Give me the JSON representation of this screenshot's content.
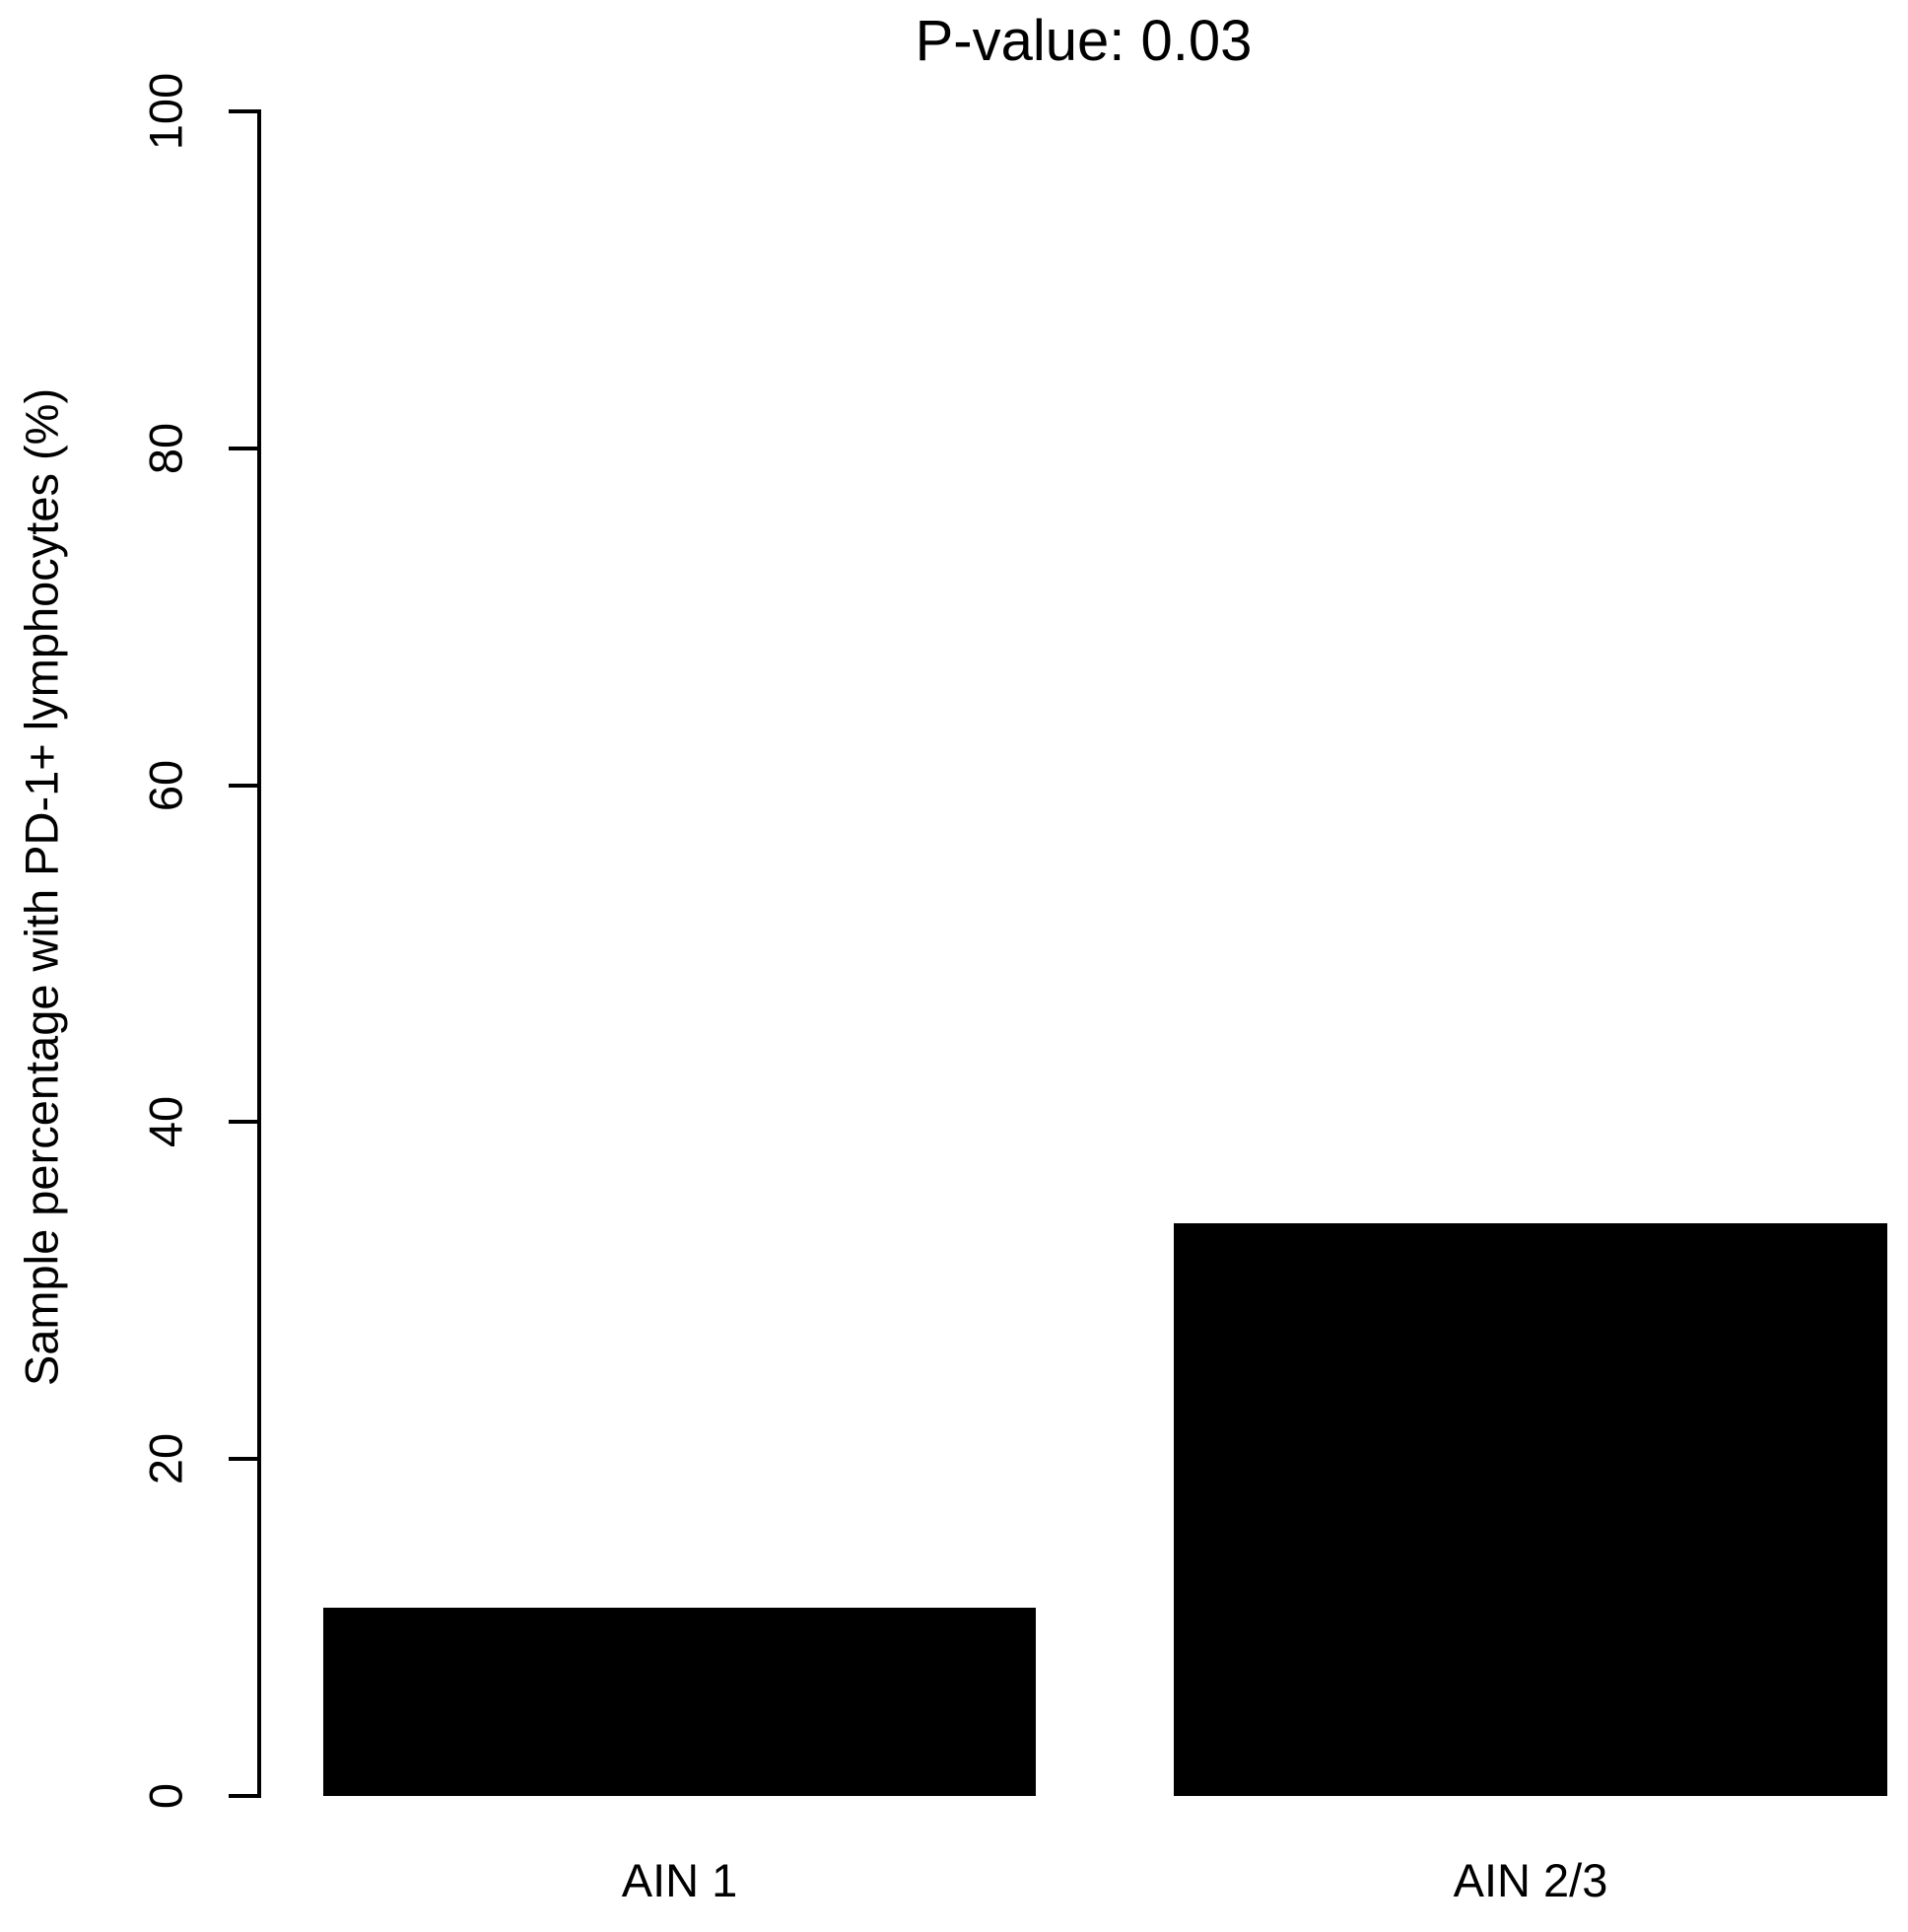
{
  "figure": {
    "background": "#ffffff",
    "text_color": "#000000"
  },
  "chart_data": {
    "type": "bar",
    "title": "P-value: 0.03",
    "categories": [
      "AIN 1",
      "AIN 2/3"
    ],
    "values": [
      11.2,
      34
    ],
    "series": [
      {
        "name": "Sample percentage with PD-1+ lymphocytes",
        "values": [
          11.2,
          34
        ]
      }
    ],
    "xlabel": "",
    "ylabel": "Sample percentage with PD-1+ lymphocytes (%)",
    "ylim": [
      0,
      100
    ],
    "yticks": [
      0,
      20,
      40,
      60,
      80,
      100
    ],
    "bar_color": "#000000",
    "bar_border_color": "#000000",
    "grid": false,
    "legend_position": "none"
  }
}
